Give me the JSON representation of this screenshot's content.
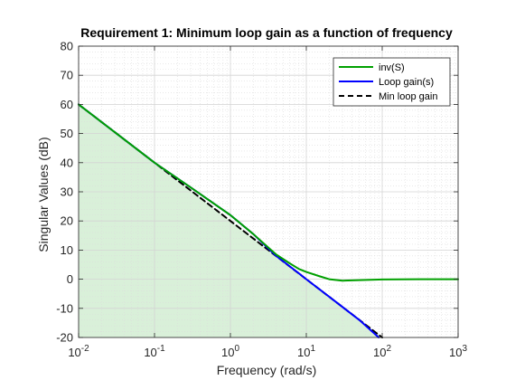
{
  "chart_data": {
    "type": "line",
    "title": "Requirement 1: Minimum loop gain as a function of frequency",
    "xlabel": "Frequency (rad/s)",
    "ylabel": "Singular Values (dB)",
    "xscale": "log",
    "xlim": [
      0.01,
      1000
    ],
    "ylim": [
      -20,
      80
    ],
    "grid": true,
    "minor_grid": true,
    "legend_position": "top-right",
    "x_ticks": [
      {
        "value": 0.01,
        "base": "10",
        "exp": "-2"
      },
      {
        "value": 0.1,
        "base": "10",
        "exp": "-1"
      },
      {
        "value": 1,
        "base": "10",
        "exp": "0"
      },
      {
        "value": 10,
        "base": "10",
        "exp": "1"
      },
      {
        "value": 100,
        "base": "10",
        "exp": "2"
      },
      {
        "value": 1000,
        "base": "10",
        "exp": "3"
      }
    ],
    "y_ticks": [
      -20,
      -10,
      0,
      10,
      20,
      30,
      40,
      50,
      60,
      70,
      80
    ],
    "shaded_region": {
      "color": "#d9f0d9",
      "x": [
        0.01,
        100
      ],
      "y": [
        60,
        -20
      ]
    },
    "series": [
      {
        "name": "inv(S)",
        "color": "#00a000",
        "style": "solid",
        "x": [
          0.01,
          0.1,
          0.3,
          1,
          2,
          4,
          6,
          8,
          10,
          15,
          20,
          30,
          50,
          100,
          300,
          1000
        ],
        "y": [
          60,
          40,
          31.5,
          22,
          15.5,
          8.5,
          5.5,
          3.5,
          2.5,
          1,
          0,
          -0.5,
          -0.3,
          -0.1,
          0,
          0
        ]
      },
      {
        "name": "Loop gain(s)",
        "color": "#0000ff",
        "style": "solid",
        "x": [
          0.01,
          0.1,
          0.3,
          1,
          2,
          4,
          6,
          8,
          10,
          20,
          50,
          90
        ],
        "y": [
          60,
          40,
          31.5,
          22,
          15.5,
          8,
          4.5,
          2,
          0,
          -6,
          -14,
          -20
        ]
      },
      {
        "name": "Min loop gain",
        "color": "#000000",
        "style": "dashed",
        "x": [
          0.01,
          100
        ],
        "y": [
          60,
          -20
        ]
      }
    ]
  }
}
